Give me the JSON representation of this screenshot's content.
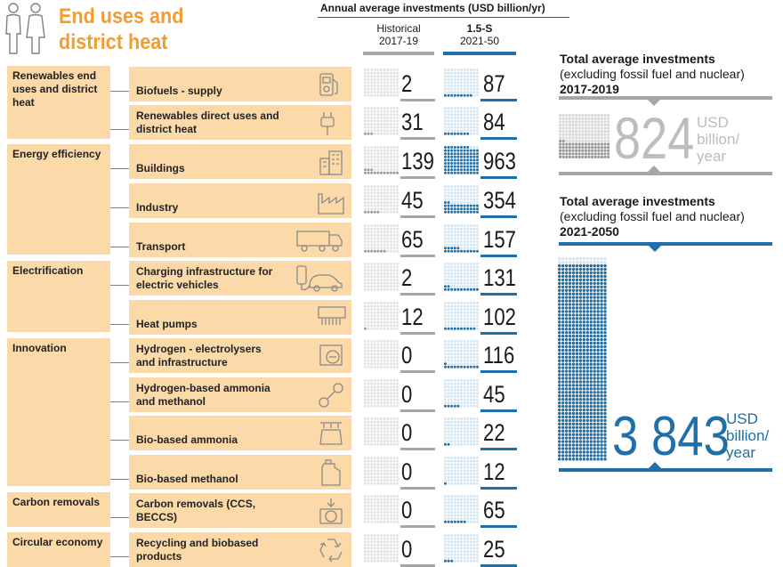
{
  "header": {
    "title_line1": "End uses and",
    "title_line2": "district heat",
    "investments_label": "Annual average investments (USD billion/yr)",
    "historical_label": "Historical",
    "historical_period": "2017-19",
    "scenario_label": "1.5-S",
    "scenario_period": "2021-50"
  },
  "categories": [
    {
      "label": "Renewables end uses and district heat"
    },
    {
      "label": "Energy efficiency"
    },
    {
      "label": "Electrification"
    },
    {
      "label": "Innovation"
    },
    {
      "label": "Carbon removals"
    },
    {
      "label": "Circular economy"
    }
  ],
  "items": [
    {
      "label": "Biofuels - supply",
      "icon": "fuel-pump-icon",
      "historical": "2",
      "scenario": "87",
      "h": 2,
      "s": 87
    },
    {
      "label": "Renewables direct uses and district heat",
      "icon": "plug-icon",
      "historical": "31",
      "scenario": "84",
      "h": 31,
      "s": 84
    },
    {
      "label": "Buildings",
      "icon": "buildings-icon",
      "historical": "139",
      "scenario": "963",
      "h": 139,
      "s": 963
    },
    {
      "label": "Industry",
      "icon": "factory-icon",
      "historical": "45",
      "scenario": "354",
      "h": 45,
      "s": 354
    },
    {
      "label": "Transport",
      "icon": "truck-icon",
      "historical": "65",
      "scenario": "157",
      "h": 65,
      "s": 157
    },
    {
      "label": "Charging infrastructure for electric vehicles",
      "icon": "ev-charger-icon",
      "historical": "2",
      "scenario": "131",
      "h": 2,
      "s": 131
    },
    {
      "label": "Heat pumps",
      "icon": "heat-pump-icon",
      "historical": "12",
      "scenario": "102",
      "h": 12,
      "s": 102
    },
    {
      "label": "Hydrogen - electrolysers and infrastructure",
      "icon": "electrolyser-icon",
      "historical": "0",
      "scenario": "116",
      "h": 0,
      "s": 116
    },
    {
      "label": "Hydrogen-based ammonia and methanol",
      "icon": "molecule-icon",
      "historical": "0",
      "scenario": "45",
      "h": 0,
      "s": 45
    },
    {
      "label": "Bio-based ammonia",
      "icon": "ammonia-icon",
      "historical": "0",
      "scenario": "22",
      "h": 0,
      "s": 22
    },
    {
      "label": "Bio-based methanol",
      "icon": "canister-icon",
      "historical": "0",
      "scenario": "12",
      "h": 0,
      "s": 12
    },
    {
      "label": "Carbon removals (CCS, BECCS)",
      "icon": "co2-capture-icon",
      "historical": "0",
      "scenario": "65",
      "h": 0,
      "s": 65
    },
    {
      "label": "Recycling and biobased products",
      "icon": "recycle-icon",
      "historical": "0",
      "scenario": "25",
      "h": 0,
      "s": 25
    }
  ],
  "totals": {
    "t1_line1": "Total average investments",
    "t1_line2": "(excluding fossil fuel and nuclear)",
    "t1_period": "2017-2019",
    "t1_value": "824",
    "t1_unit1": "USD",
    "t1_unit2": "billion/",
    "t1_unit3": "year",
    "t2_line1": "Total average investments",
    "t2_line2": "(excluding fossil fuel and nuclear)",
    "t2_period": "2021-2050",
    "t2_value": "3 843",
    "t2_unit1": "USD",
    "t2_unit2": "billion/",
    "t2_unit3": "year"
  },
  "colors": {
    "orange": "#f39c2f",
    "box": "#fbd9a8",
    "blue": "#1f6fa8",
    "grey": "#a6a6a6"
  }
}
